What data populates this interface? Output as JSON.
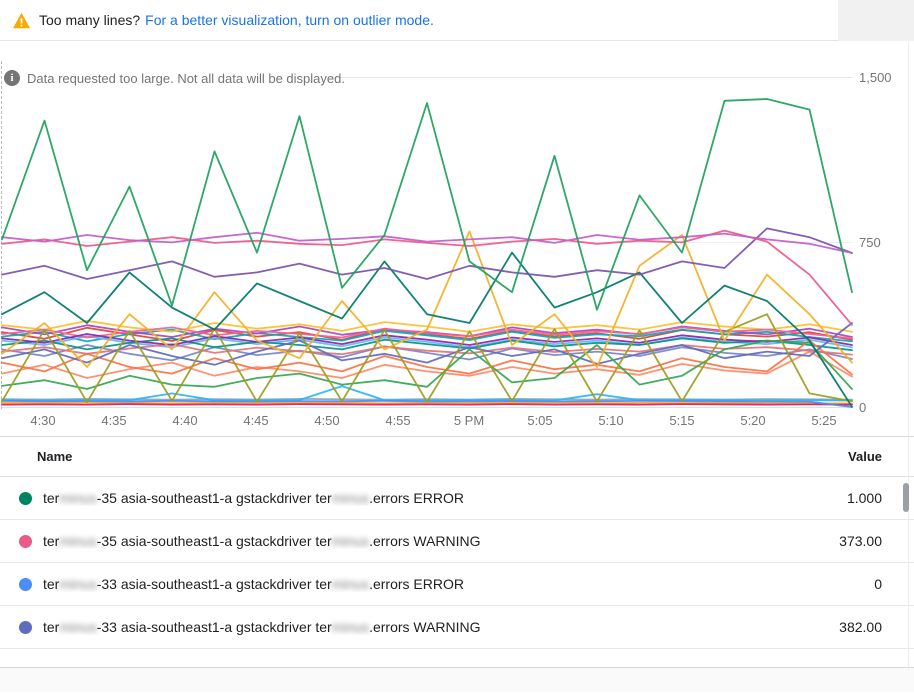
{
  "banner": {
    "warning_icon": "warning-triangle-icon",
    "text": "Too many lines?",
    "link": "For a better visualization, turn on outlier mode.",
    "link_color": "#1a73e8",
    "warning_color": "#f9ab00"
  },
  "notice": {
    "icon": "info-icon",
    "text": "Data requested too large. Not all data will be displayed."
  },
  "chart_data": {
    "type": "line",
    "title": "",
    "xlabel": "",
    "ylabel": "",
    "x_tick_labels": [
      "4:30",
      "4:35",
      "4:40",
      "4:45",
      "4:50",
      "4:55",
      "5 PM",
      "5:05",
      "5:10",
      "5:15",
      "5:20",
      "5:25"
    ],
    "y_tick_labels": [
      "1,500",
      "750",
      "0"
    ],
    "y_range": [
      0,
      1500
    ],
    "x_range_minutes": [
      0,
      60
    ],
    "grid": "horizontal-only",
    "legend_position": "table-below",
    "series": [
      {
        "color": "#90A4AE",
        "values": [
          36,
          34,
          37,
          35,
          33,
          36,
          34,
          37,
          35,
          33,
          36,
          34,
          37,
          35,
          33,
          36,
          35,
          34,
          36,
          35,
          33
        ]
      },
      {
        "color": "#FFA726",
        "values": [
          19,
          18,
          20,
          19,
          17,
          19,
          18,
          20,
          19,
          17,
          19,
          18,
          20,
          19,
          17,
          19,
          18,
          19,
          18,
          17,
          16
        ]
      },
      {
        "color": "#D81B60",
        "values": [
          11,
          12,
          11,
          13,
          11,
          12,
          11,
          13,
          12,
          11,
          12,
          11,
          13,
          11,
          12,
          11,
          13,
          12,
          11,
          12,
          11
        ]
      },
      {
        "color": "#29B6F6",
        "values": [
          31,
          30,
          32,
          31,
          62,
          31,
          30,
          32,
          95,
          31,
          30,
          32,
          31,
          30,
          58,
          31,
          32,
          31,
          30,
          31,
          29
        ]
      },
      {
        "name": "terminus-33 asia-southeast1-a gstackdriver terminus.errors ERROR",
        "color": "#4C8DF5",
        "values": [
          28,
          26,
          27,
          25,
          28,
          26,
          25,
          27,
          26,
          28,
          25,
          26,
          27,
          25,
          26,
          28,
          27,
          26,
          25,
          24,
          0
        ]
      },
      {
        "color": "#DB4437",
        "values": [
          340,
          310,
          360,
          330,
          300,
          350,
          320,
          340,
          305,
          355,
          330,
          310,
          345,
          320,
          335,
          310,
          350,
          330,
          320,
          340,
          305
        ]
      },
      {
        "color": "#00ACC1",
        "values": [
          320,
          342,
          298,
          332,
          352,
          308,
          336,
          318,
          302,
          346,
          326,
          304,
          342,
          314,
          330,
          322,
          352,
          330,
          342,
          318,
          298
        ]
      },
      {
        "color": "#AB47BC",
        "values": [
          362,
          330,
          372,
          342,
          318,
          356,
          334,
          366,
          328,
          352,
          340,
          322,
          362,
          336,
          352,
          330,
          366,
          346,
          330,
          356,
          318
        ]
      },
      {
        "color": "#7986CB",
        "values": [
          262,
          232,
          282,
          242,
          212,
          272,
          236,
          256,
          226,
          276,
          246,
          216,
          266,
          236,
          252,
          232,
          272,
          246,
          232,
          262,
          218
        ]
      },
      {
        "color": "#FF8A65",
        "values": [
          152,
          192,
          132,
          172,
          202,
          142,
          182,
          162,
          132,
          192,
          162,
          142,
          182,
          152,
          172,
          146,
          196,
          166,
          152,
          252,
          138
        ]
      },
      {
        "color": "#64B5F6",
        "values": [
          302,
          282,
          322,
          292,
          272,
          312,
          286,
          306,
          276,
          316,
          296,
          272,
          306,
          286,
          302,
          282,
          316,
          296,
          286,
          306,
          272
        ]
      },
      {
        "color": "#FBC02D",
        "values": [
          372,
          352,
          392,
          362,
          342,
          382,
          356,
          376,
          346,
          386,
          366,
          342,
          376,
          356,
          372,
          352,
          386,
          366,
          352,
          376,
          342
        ]
      },
      {
        "color": "#009688",
        "values": [
          282,
          302,
          262,
          292,
          312,
          272,
          296,
          282,
          262,
          306,
          286,
          266,
          302,
          276,
          292,
          282,
          312,
          292,
          302,
          282,
          258
        ]
      },
      {
        "color": "#F06292",
        "values": [
          332,
          352,
          316,
          342,
          362,
          326,
          346,
          332,
          316,
          356,
          336,
          322,
          352,
          328,
          344,
          332,
          362,
          342,
          352,
          332,
          312
        ]
      },
      {
        "color": "#E57373",
        "values": [
          252,
          272,
          242,
          266,
          286,
          246,
          270,
          253,
          240,
          274,
          256,
          244,
          270,
          250,
          264,
          252,
          282,
          264,
          272,
          256,
          238
        ]
      },
      {
        "color": "#8E24AA",
        "values": [
          312,
          292,
          332,
          302,
          282,
          322,
          296,
          316,
          286,
          326,
          306,
          282,
          316,
          296,
          312,
          292,
          326,
          306,
          296,
          316,
          282
        ]
      },
      {
        "color": "#FF7043",
        "values": [
          202,
          162,
          242,
          182,
          152,
          222,
          172,
          202,
          162,
          232,
          182,
          152,
          212,
          172,
          192,
          162,
          222,
          182,
          162,
          302,
          148
        ]
      },
      {
        "name": "terminus-33 asia-southeast1-a gstackdriver terminus.errors WARNING",
        "color": "#5F6BBF",
        "values": [
          222,
          262,
          202,
          282,
          232,
          192,
          252,
          302,
          212,
          242,
          202,
          272,
          232,
          262,
          196,
          242,
          282,
          222,
          252,
          232,
          382
        ]
      },
      {
        "color": "#34A853",
        "values": [
          96,
          122,
          82,
          142,
          102,
          92,
          132,
          152,
          102,
          122,
          92,
          262,
          112,
          132,
          282,
          102,
          142,
          262,
          302,
          292,
          82
        ]
      },
      {
        "color": "#9E9D24",
        "values": [
          26,
          352,
          22,
          346,
          28,
          356,
          24,
          336,
          26,
          350,
          23,
          344,
          27,
          354,
          25,
          348,
          26,
          342,
          422,
          62,
          26
        ]
      },
      {
        "color": "#F2B027",
        "values": [
          242,
          382,
          182,
          422,
          262,
          522,
          302,
          222,
          482,
          262,
          352,
          798,
          282,
          422,
          182,
          642,
          782,
          302,
          602,
          422,
          202
        ]
      },
      {
        "name": "terminus-35 asia-southeast1-a gstackdriver terminus.errors ERROR",
        "color": "#00796B",
        "values": [
          422,
          522,
          382,
          612,
          452,
          352,
          562,
          482,
          402,
          662,
          422,
          382,
          702,
          452,
          522,
          612,
          382,
          552,
          482,
          302,
          1
        ]
      },
      {
        "color": "#7B52AB",
        "values": [
          602,
          642,
          582,
          622,
          662,
          592,
          612,
          652,
          602,
          632,
          582,
          642,
          612,
          592,
          622,
          602,
          662,
          632,
          812,
          772,
          700
        ]
      },
      {
        "name": "terminus-35 asia-southeast1-a gstackdriver terminus.errors WARNING",
        "color": "#EC5A87",
        "values": [
          742,
          762,
          732,
          752,
          772,
          746,
          756,
          742,
          736,
          762,
          746,
          732,
          752,
          764,
          742,
          756,
          748,
          802,
          752,
          602,
          373
        ]
      },
      {
        "color": "#C45EC8",
        "values": [
          772,
          752,
          782,
          758,
          748,
          772,
          792,
          756,
          764,
          776,
          752,
          762,
          772,
          746,
          782,
          760,
          772,
          788,
          762,
          742,
          700
        ]
      },
      {
        "color": "#1FA05C",
        "values": [
          762,
          1302,
          622,
          1002,
          462,
          1162,
          702,
          1322,
          542,
          782,
          1382,
          662,
          522,
          1142,
          442,
          962,
          702,
          1392,
          1400,
          1352,
          522
        ]
      }
    ]
  },
  "legend": {
    "columns": {
      "name": "Name",
      "value": "Value"
    },
    "rows": [
      {
        "dot_color": "#00835F",
        "prefix": "ter",
        "redacted1": "minus",
        "middle": "-35 asia-southeast1-a gstackdriver ter",
        "redacted2": "minus",
        "suffix": ".errors ERROR",
        "value": "1.000"
      },
      {
        "dot_color": "#EC5A87",
        "prefix": "ter",
        "redacted1": "minus",
        "middle": "-35 asia-southeast1-a gstackdriver ter",
        "redacted2": "minus",
        "suffix": ".errors WARNING",
        "value": "373.00"
      },
      {
        "dot_color": "#4C8DF5",
        "prefix": "ter",
        "redacted1": "minus",
        "middle": "-33 asia-southeast1-a gstackdriver ter",
        "redacted2": "minus",
        "suffix": ".errors ERROR",
        "value": "0"
      },
      {
        "dot_color": "#5F6BBF",
        "prefix": "ter",
        "redacted1": "minus",
        "middle": "-33 asia-southeast1-a gstackdriver ter",
        "redacted2": "minus",
        "suffix": ".errors WARNING",
        "value": "382.00"
      }
    ]
  }
}
